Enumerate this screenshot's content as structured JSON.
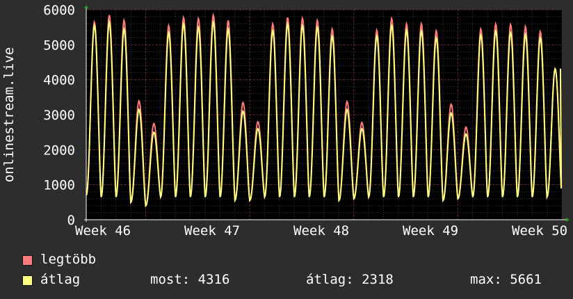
{
  "chart_data": {
    "type": "line",
    "ylabel": "onlinestream.live",
    "ylim": [
      0,
      6000
    ],
    "yticks": [
      0,
      1000,
      2000,
      3000,
      4000,
      5000,
      6000
    ],
    "xtick_labels": [
      "Week 46",
      "Week 47",
      "Week 48",
      "Week 49",
      "Week 50"
    ],
    "grid": true,
    "background": "#000000",
    "days": 32,
    "daily_peaks": {
      "max": [
        5650,
        5850,
        5700,
        3400,
        2750,
        5550,
        5780,
        5750,
        5850,
        5700,
        3350,
        2800,
        5600,
        5780,
        5760,
        5700,
        5450,
        3380,
        2780,
        5420,
        5750,
        5600,
        5600,
        5400,
        3300,
        2650,
        5450,
        5600,
        5580,
        5520,
        5380,
        4316
      ],
      "avg": [
        5550,
        5650,
        5450,
        3150,
        2500,
        5350,
        5600,
        5500,
        5650,
        5450,
        3100,
        2600,
        5400,
        5600,
        5550,
        5500,
        5250,
        3150,
        2600,
        5250,
        5550,
        5420,
        5400,
        5200,
        3050,
        2450,
        5280,
        5400,
        5350,
        5300,
        5200,
        4316
      ]
    },
    "daily_troughs": [
      700,
      650,
      650,
      500,
      400,
      650,
      650,
      650,
      650,
      650,
      550,
      550,
      650,
      650,
      650,
      650,
      650,
      550,
      600,
      650,
      650,
      650,
      650,
      650,
      550,
      600,
      650,
      650,
      650,
      650,
      650,
      650
    ],
    "series": [
      {
        "name": "legtöbb",
        "color": "#ff7b7b"
      },
      {
        "name": "átlag",
        "color": "#ffff80"
      }
    ]
  },
  "legend": {
    "max_label": "legtöbb",
    "avg_label": "átlag",
    "now_text": "most: 4316",
    "avg_text": "átlag: 2318",
    "max_text": "max: 5661"
  }
}
